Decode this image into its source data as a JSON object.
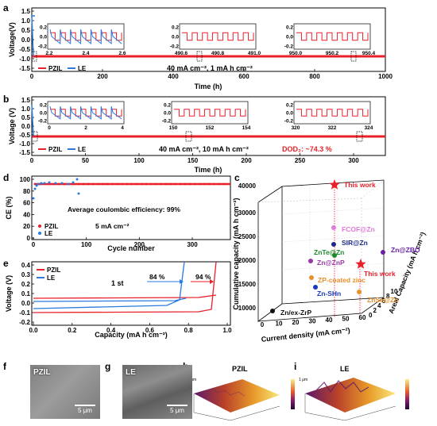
{
  "panels": {
    "a": {
      "letter": "a",
      "ylabel": "Voltage(V)",
      "xlabel": "Time (h)",
      "xticks": [
        "0",
        "200",
        "400",
        "600",
        "800",
        "1000"
      ],
      "yticks": [
        "1.5",
        "1.0",
        "0.5",
        "0.0",
        "-0.5",
        "-1.0",
        "-1.5"
      ],
      "legend": [
        "PZIL",
        "LE"
      ],
      "condition": "40 mA cm⁻², 1 mA h cm⁻²",
      "insets": [
        {
          "xticks": [
            "2.2",
            "2.4",
            "2.6"
          ],
          "yticks": [
            "0.2",
            "0.0",
            "-0.2"
          ]
        },
        {
          "xticks": [
            "490.6",
            "490.8",
            "491.0"
          ],
          "yticks": [
            "0.2",
            "0.0",
            "-0.2"
          ]
        },
        {
          "xticks": [
            "950.0",
            "950.2",
            "950.4"
          ],
          "yticks": [
            "0.2",
            "0.0",
            "-0.2"
          ]
        }
      ]
    },
    "b": {
      "letter": "b",
      "ylabel": "Voltage (V)",
      "xlabel": "Time (h)",
      "xticks": [
        "0",
        "50",
        "100",
        "150",
        "200",
        "250",
        "300"
      ],
      "yticks": [
        "1.5",
        "1.0",
        "0.5",
        "0.0",
        "-0.5",
        "-1.0",
        "-1.5"
      ],
      "legend": [
        "PZIL",
        "LE"
      ],
      "condition": "40 mA cm⁻², 10 mA h cm⁻²",
      "dod": "DOD₂: ~74.3 %",
      "insets": [
        {
          "xticks": [
            "0",
            "2",
            "4"
          ],
          "yticks": [
            "0.2",
            "0.0",
            "-0.2"
          ]
        },
        {
          "xticks": [
            "150",
            "152",
            "154"
          ],
          "yticks": [
            "0.2",
            "0.0",
            "-0.2"
          ]
        },
        {
          "xticks": [
            "320",
            "322",
            "324"
          ],
          "yticks": [
            "0.2",
            "0.0",
            "-0.2"
          ]
        }
      ]
    },
    "c": {
      "letter": "c",
      "zlabel": "Cumulative capacity (mA h cm⁻²)",
      "xlabel": "Current density (mA cm⁻²)",
      "ylabel": "Areal Capacity (mA h cm⁻²)",
      "zticks": [
        "40000",
        "30000",
        "25000",
        "20000",
        "15000",
        "10000"
      ],
      "xticks": [
        "0",
        "10",
        "20",
        "30",
        "40",
        "50",
        "60"
      ],
      "yticks": [
        "0",
        "2",
        "4",
        "6",
        "8",
        "10"
      ],
      "points": [
        {
          "label": "This work",
          "color": "#e8202a",
          "kind": "star"
        },
        {
          "label": "FCOF@Zn",
          "color": "#e07ad8"
        },
        {
          "label": "SIR@Zn",
          "color": "#1a2a8a"
        },
        {
          "label": "Zn@ZBO",
          "color": "#6a1fa8"
        },
        {
          "label": "ZnTe@Zn",
          "color": "#1a8a2a"
        },
        {
          "label": "Zn@ZnP",
          "color": "#9a3aa8"
        },
        {
          "label": "This work",
          "color": "#e8202a",
          "kind": "star"
        },
        {
          "label": "ZP-coated zinc",
          "color": "#e8902a"
        },
        {
          "label": "Zn-SHn",
          "color": "#1a3ab8"
        },
        {
          "label": "ZnSe@Zn",
          "color": "#e8902a"
        },
        {
          "label": "Zn/ex-ZrP",
          "color": "#111111"
        }
      ]
    },
    "d": {
      "letter": "d",
      "ylabel": "CE (%)",
      "xlabel": "Cycle number",
      "xticks": [
        "0",
        "100",
        "200",
        "300"
      ],
      "yticks": [
        "100",
        "80",
        "60",
        "40",
        "20",
        "0"
      ],
      "legend": [
        "PZIL",
        "LE"
      ],
      "annotation": "Average coulombic efficiency: 99%",
      "condition": "5 mA cm⁻²"
    },
    "e": {
      "letter": "e",
      "ylabel": "Voltage (V)",
      "xlabel": "Capacity (mA h cm⁻²)",
      "xticks": [
        "0.0",
        "0.2",
        "0.4",
        "0.6",
        "0.8",
        "1.0"
      ],
      "yticks": [
        "0.4",
        "0.3",
        "0.2",
        "0.1",
        "0.0",
        "-0.1",
        "-0.2"
      ],
      "legend": [
        "PZIL",
        "LE"
      ],
      "cycle": "1 st",
      "pct1": "84 %",
      "pct2": "94 %"
    },
    "f": {
      "letter": "f",
      "label": "PZIL",
      "scale": "5 μm"
    },
    "g": {
      "letter": "g",
      "label": "LE",
      "scale": "5 μm"
    },
    "h": {
      "letter": "h",
      "label": "PZIL",
      "unit": "1 μm"
    },
    "i": {
      "letter": "i",
      "label": "LE",
      "unit": "1 μm"
    }
  },
  "colors": {
    "pzil": "#e8202a",
    "le": "#2a7ae0"
  }
}
